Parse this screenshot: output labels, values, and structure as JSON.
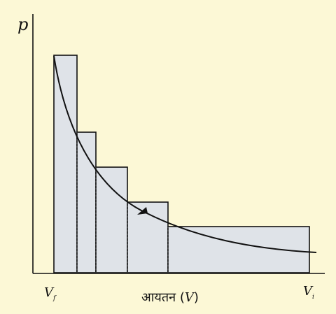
{
  "axis": {
    "y_label": "p",
    "x_label": "आयतन",
    "x_symbol": "V",
    "v_final_main": "V",
    "v_final_sub": "f",
    "v_initial_main": "V",
    "v_initial_sub": "i"
  },
  "colors": {
    "background": "#fcf8d6",
    "step_fill": "#dfe3e8",
    "line": "#111111"
  }
}
